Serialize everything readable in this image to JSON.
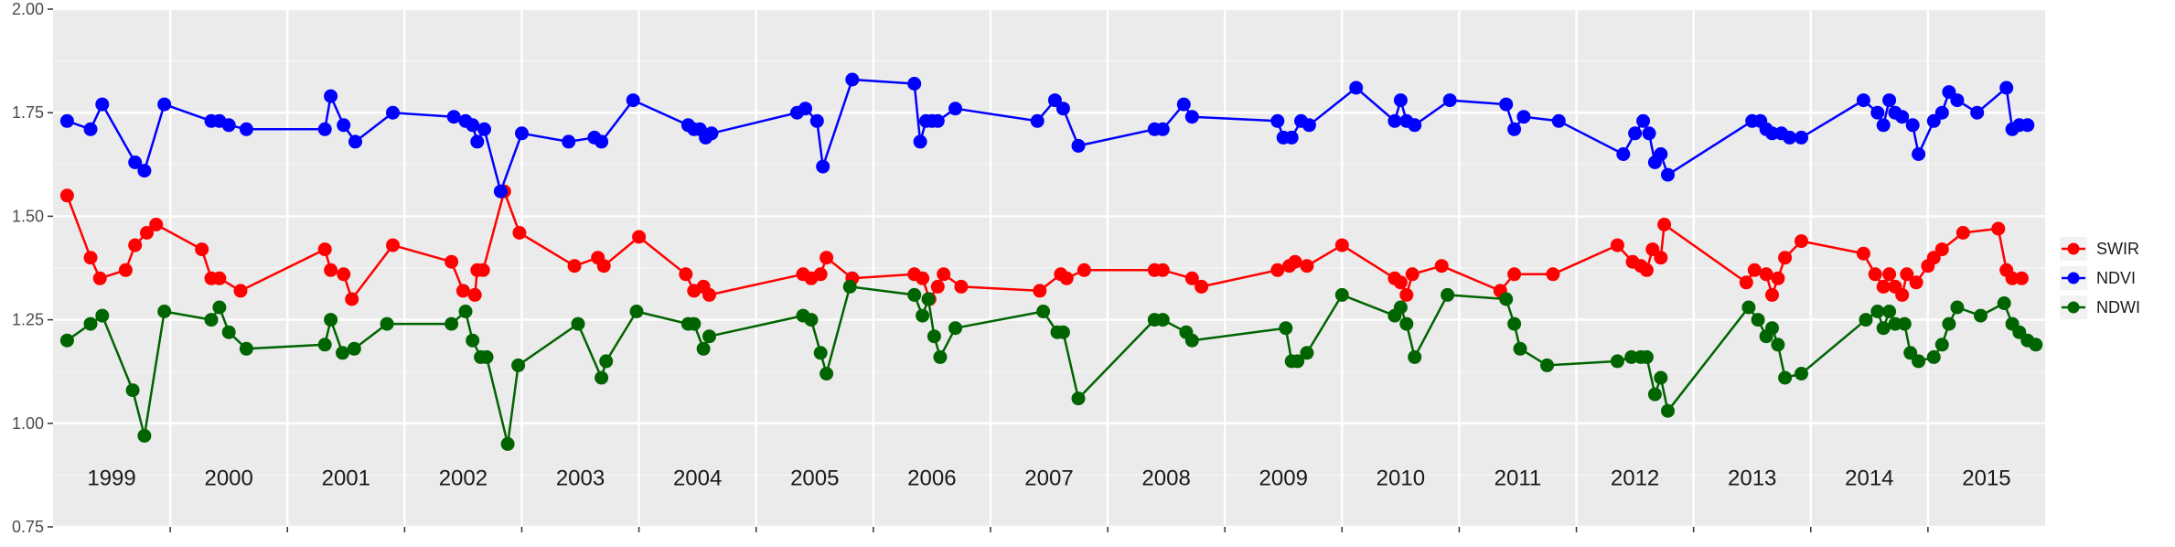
{
  "chart_data": {
    "type": "line",
    "title": "",
    "xlabel": "",
    "ylabel": "",
    "xlim": [
      1999.0,
      2016.0
    ],
    "ylim": [
      0.75,
      2.0
    ],
    "yticks": [
      0.75,
      1.0,
      1.25,
      1.5,
      1.75,
      2.0
    ],
    "ytick_labels": [
      "0.75",
      "1.00",
      "1.25",
      "1.50",
      "1.75",
      "2.00"
    ],
    "year_labels": [
      "1999",
      "2000",
      "2001",
      "2002",
      "2003",
      "2004",
      "2005",
      "2006",
      "2007",
      "2008",
      "2009",
      "2010",
      "2011",
      "2012",
      "2013",
      "2014",
      "2015"
    ],
    "grid": true,
    "legend_position": "right",
    "series": [
      {
        "name": "SWIR",
        "color": "#ff0000",
        "points": [
          [
            1999.12,
            1.55
          ],
          [
            1999.32,
            1.4
          ],
          [
            1999.4,
            1.35
          ],
          [
            1999.62,
            1.37
          ],
          [
            1999.7,
            1.43
          ],
          [
            1999.8,
            1.46
          ],
          [
            1999.88,
            1.48
          ],
          [
            2000.27,
            1.42
          ],
          [
            2000.35,
            1.35
          ],
          [
            2000.42,
            1.35
          ],
          [
            2000.6,
            1.32
          ],
          [
            2001.32,
            1.42
          ],
          [
            2001.37,
            1.37
          ],
          [
            2001.48,
            1.36
          ],
          [
            2001.55,
            1.3
          ],
          [
            2001.9,
            1.43
          ],
          [
            2002.4,
            1.39
          ],
          [
            2002.5,
            1.32
          ],
          [
            2002.6,
            1.31
          ],
          [
            2002.62,
            1.37
          ],
          [
            2002.67,
            1.37
          ],
          [
            2002.85,
            1.56
          ],
          [
            2002.98,
            1.46
          ],
          [
            2003.45,
            1.38
          ],
          [
            2003.65,
            1.4
          ],
          [
            2003.7,
            1.38
          ],
          [
            2004.0,
            1.45
          ],
          [
            2004.4,
            1.36
          ],
          [
            2004.47,
            1.32
          ],
          [
            2004.55,
            1.33
          ],
          [
            2004.6,
            1.31
          ],
          [
            2005.4,
            1.36
          ],
          [
            2005.47,
            1.35
          ],
          [
            2005.55,
            1.36
          ],
          [
            2005.6,
            1.4
          ],
          [
            2005.82,
            1.35
          ],
          [
            2006.35,
            1.36
          ],
          [
            2006.42,
            1.35
          ],
          [
            2006.48,
            1.3
          ],
          [
            2006.55,
            1.33
          ],
          [
            2006.6,
            1.36
          ],
          [
            2006.75,
            1.33
          ],
          [
            2007.42,
            1.32
          ],
          [
            2007.6,
            1.36
          ],
          [
            2007.65,
            1.35
          ],
          [
            2007.8,
            1.37
          ],
          [
            2008.4,
            1.37
          ],
          [
            2008.47,
            1.37
          ],
          [
            2008.72,
            1.35
          ],
          [
            2008.8,
            1.33
          ],
          [
            2009.45,
            1.37
          ],
          [
            2009.55,
            1.38
          ],
          [
            2009.6,
            1.39
          ],
          [
            2009.7,
            1.38
          ],
          [
            2010.0,
            1.43
          ],
          [
            2010.45,
            1.35
          ],
          [
            2010.5,
            1.34
          ],
          [
            2010.55,
            1.31
          ],
          [
            2010.6,
            1.36
          ],
          [
            2010.85,
            1.38
          ],
          [
            2011.35,
            1.32
          ],
          [
            2011.47,
            1.36
          ],
          [
            2011.8,
            1.36
          ],
          [
            2012.35,
            1.43
          ],
          [
            2012.48,
            1.39
          ],
          [
            2012.55,
            1.38
          ],
          [
            2012.6,
            1.37
          ],
          [
            2012.65,
            1.42
          ],
          [
            2012.72,
            1.4
          ],
          [
            2012.75,
            1.48
          ],
          [
            2013.45,
            1.34
          ],
          [
            2013.52,
            1.37
          ],
          [
            2013.62,
            1.36
          ],
          [
            2013.67,
            1.31
          ],
          [
            2013.72,
            1.35
          ],
          [
            2013.78,
            1.4
          ],
          [
            2013.92,
            1.44
          ],
          [
            2014.45,
            1.41
          ],
          [
            2014.55,
            1.36
          ],
          [
            2014.62,
            1.33
          ],
          [
            2014.67,
            1.36
          ],
          [
            2014.72,
            1.33
          ],
          [
            2014.78,
            1.31
          ],
          [
            2014.82,
            1.36
          ],
          [
            2014.9,
            1.34
          ],
          [
            2015.0,
            1.38
          ],
          [
            2015.05,
            1.4
          ],
          [
            2015.12,
            1.42
          ],
          [
            2015.3,
            1.46
          ],
          [
            2015.6,
            1.47
          ],
          [
            2015.67,
            1.37
          ],
          [
            2015.72,
            1.35
          ],
          [
            2015.8,
            1.35
          ]
        ]
      },
      {
        "name": "NDVI",
        "color": "#0000ff",
        "points": [
          [
            1999.12,
            1.73
          ],
          [
            1999.32,
            1.71
          ],
          [
            1999.42,
            1.77
          ],
          [
            1999.7,
            1.63
          ],
          [
            1999.78,
            1.61
          ],
          [
            1999.95,
            1.77
          ],
          [
            2000.35,
            1.73
          ],
          [
            2000.42,
            1.73
          ],
          [
            2000.5,
            1.72
          ],
          [
            2000.65,
            1.71
          ],
          [
            2001.32,
            1.71
          ],
          [
            2001.37,
            1.79
          ],
          [
            2001.48,
            1.72
          ],
          [
            2001.58,
            1.68
          ],
          [
            2001.9,
            1.75
          ],
          [
            2002.42,
            1.74
          ],
          [
            2002.52,
            1.73
          ],
          [
            2002.58,
            1.72
          ],
          [
            2002.62,
            1.68
          ],
          [
            2002.68,
            1.71
          ],
          [
            2002.82,
            1.56
          ],
          [
            2003.0,
            1.7
          ],
          [
            2003.4,
            1.68
          ],
          [
            2003.62,
            1.69
          ],
          [
            2003.68,
            1.68
          ],
          [
            2003.95,
            1.78
          ],
          [
            2004.42,
            1.72
          ],
          [
            2004.47,
            1.71
          ],
          [
            2004.52,
            1.71
          ],
          [
            2004.57,
            1.69
          ],
          [
            2004.62,
            1.7
          ],
          [
            2005.35,
            1.75
          ],
          [
            2005.42,
            1.76
          ],
          [
            2005.52,
            1.73
          ],
          [
            2005.57,
            1.62
          ],
          [
            2005.82,
            1.83
          ],
          [
            2006.35,
            1.82
          ],
          [
            2006.4,
            1.68
          ],
          [
            2006.45,
            1.73
          ],
          [
            2006.5,
            1.73
          ],
          [
            2006.55,
            1.73
          ],
          [
            2006.7,
            1.76
          ],
          [
            2007.4,
            1.73
          ],
          [
            2007.55,
            1.78
          ],
          [
            2007.62,
            1.76
          ],
          [
            2007.75,
            1.67
          ],
          [
            2008.4,
            1.71
          ],
          [
            2008.47,
            1.71
          ],
          [
            2008.65,
            1.77
          ],
          [
            2008.72,
            1.74
          ],
          [
            2009.45,
            1.73
          ],
          [
            2009.5,
            1.69
          ],
          [
            2009.57,
            1.69
          ],
          [
            2009.65,
            1.73
          ],
          [
            2009.72,
            1.72
          ],
          [
            2010.12,
            1.81
          ],
          [
            2010.45,
            1.73
          ],
          [
            2010.5,
            1.78
          ],
          [
            2010.55,
            1.73
          ],
          [
            2010.62,
            1.72
          ],
          [
            2010.92,
            1.78
          ],
          [
            2011.4,
            1.77
          ],
          [
            2011.47,
            1.71
          ],
          [
            2011.55,
            1.74
          ],
          [
            2011.85,
            1.73
          ],
          [
            2012.4,
            1.65
          ],
          [
            2012.5,
            1.7
          ],
          [
            2012.57,
            1.73
          ],
          [
            2012.62,
            1.7
          ],
          [
            2012.67,
            1.63
          ],
          [
            2012.72,
            1.65
          ],
          [
            2012.78,
            1.6
          ],
          [
            2013.5,
            1.73
          ],
          [
            2013.57,
            1.73
          ],
          [
            2013.62,
            1.71
          ],
          [
            2013.67,
            1.7
          ],
          [
            2013.75,
            1.7
          ],
          [
            2013.82,
            1.69
          ],
          [
            2013.92,
            1.69
          ],
          [
            2014.45,
            1.78
          ],
          [
            2014.57,
            1.75
          ],
          [
            2014.62,
            1.72
          ],
          [
            2014.67,
            1.78
          ],
          [
            2014.72,
            1.75
          ],
          [
            2014.78,
            1.74
          ],
          [
            2014.87,
            1.72
          ],
          [
            2014.92,
            1.65
          ],
          [
            2015.05,
            1.73
          ],
          [
            2015.12,
            1.75
          ],
          [
            2015.18,
            1.8
          ],
          [
            2015.25,
            1.78
          ],
          [
            2015.42,
            1.75
          ],
          [
            2015.67,
            1.81
          ],
          [
            2015.72,
            1.71
          ],
          [
            2015.78,
            1.72
          ],
          [
            2015.85,
            1.72
          ]
        ]
      },
      {
        "name": "NDWI",
        "color": "#006400",
        "points": [
          [
            1999.12,
            1.2
          ],
          [
            1999.32,
            1.24
          ],
          [
            1999.42,
            1.26
          ],
          [
            1999.68,
            1.08
          ],
          [
            1999.78,
            0.97
          ],
          [
            1999.95,
            1.27
          ],
          [
            2000.35,
            1.25
          ],
          [
            2000.42,
            1.28
          ],
          [
            2000.5,
            1.22
          ],
          [
            2000.65,
            1.18
          ],
          [
            2001.32,
            1.19
          ],
          [
            2001.37,
            1.25
          ],
          [
            2001.47,
            1.17
          ],
          [
            2001.57,
            1.18
          ],
          [
            2001.85,
            1.24
          ],
          [
            2002.4,
            1.24
          ],
          [
            2002.52,
            1.27
          ],
          [
            2002.58,
            1.2
          ],
          [
            2002.65,
            1.16
          ],
          [
            2002.7,
            1.16
          ],
          [
            2002.88,
            0.95
          ],
          [
            2002.97,
            1.14
          ],
          [
            2003.48,
            1.24
          ],
          [
            2003.68,
            1.11
          ],
          [
            2003.72,
            1.15
          ],
          [
            2003.98,
            1.27
          ],
          [
            2004.42,
            1.24
          ],
          [
            2004.47,
            1.24
          ],
          [
            2004.55,
            1.18
          ],
          [
            2004.6,
            1.21
          ],
          [
            2005.4,
            1.26
          ],
          [
            2005.47,
            1.25
          ],
          [
            2005.55,
            1.17
          ],
          [
            2005.6,
            1.12
          ],
          [
            2005.8,
            1.33
          ],
          [
            2006.35,
            1.31
          ],
          [
            2006.42,
            1.26
          ],
          [
            2006.47,
            1.3
          ],
          [
            2006.52,
            1.21
          ],
          [
            2006.57,
            1.16
          ],
          [
            2006.7,
            1.23
          ],
          [
            2007.45,
            1.27
          ],
          [
            2007.57,
            1.22
          ],
          [
            2007.62,
            1.22
          ],
          [
            2007.75,
            1.06
          ],
          [
            2008.4,
            1.25
          ],
          [
            2008.47,
            1.25
          ],
          [
            2008.67,
            1.22
          ],
          [
            2008.72,
            1.2
          ],
          [
            2009.52,
            1.23
          ],
          [
            2009.57,
            1.15
          ],
          [
            2009.62,
            1.15
          ],
          [
            2009.7,
            1.17
          ],
          [
            2010.0,
            1.31
          ],
          [
            2010.45,
            1.26
          ],
          [
            2010.5,
            1.28
          ],
          [
            2010.55,
            1.24
          ],
          [
            2010.62,
            1.16
          ],
          [
            2010.9,
            1.31
          ],
          [
            2011.4,
            1.3
          ],
          [
            2011.47,
            1.24
          ],
          [
            2011.52,
            1.18
          ],
          [
            2011.75,
            1.14
          ],
          [
            2012.35,
            1.15
          ],
          [
            2012.47,
            1.16
          ],
          [
            2012.55,
            1.16
          ],
          [
            2012.6,
            1.16
          ],
          [
            2012.67,
            1.07
          ],
          [
            2012.72,
            1.11
          ],
          [
            2012.78,
            1.03
          ],
          [
            2013.47,
            1.28
          ],
          [
            2013.55,
            1.25
          ],
          [
            2013.62,
            1.21
          ],
          [
            2013.67,
            1.23
          ],
          [
            2013.72,
            1.19
          ],
          [
            2013.78,
            1.11
          ],
          [
            2013.92,
            1.12
          ],
          [
            2014.47,
            1.25
          ],
          [
            2014.57,
            1.27
          ],
          [
            2014.62,
            1.23
          ],
          [
            2014.67,
            1.27
          ],
          [
            2014.72,
            1.24
          ],
          [
            2014.8,
            1.24
          ],
          [
            2014.85,
            1.17
          ],
          [
            2014.92,
            1.15
          ],
          [
            2015.05,
            1.16
          ],
          [
            2015.12,
            1.19
          ],
          [
            2015.18,
            1.24
          ],
          [
            2015.25,
            1.28
          ],
          [
            2015.45,
            1.26
          ],
          [
            2015.65,
            1.29
          ],
          [
            2015.72,
            1.24
          ],
          [
            2015.78,
            1.22
          ],
          [
            2015.85,
            1.2
          ],
          [
            2015.92,
            1.19
          ]
        ]
      }
    ]
  }
}
